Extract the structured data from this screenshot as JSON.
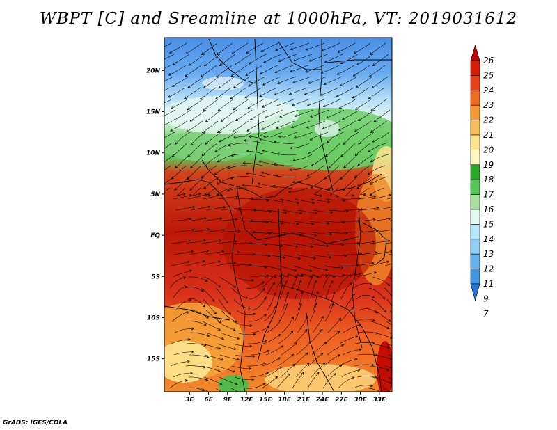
{
  "title": "WBPT [C] and Sreamline at 1000hPa, VT: 2019031612",
  "footer": "GrADS: IGES/COLA",
  "map": {
    "lat_labels": [
      "20N",
      "15N",
      "10N",
      "5N",
      "EQ",
      "5S",
      "10S",
      "15S"
    ],
    "lon_labels": [
      "3E",
      "6E",
      "9E",
      "12E",
      "15E",
      "18E",
      "21E",
      "24E",
      "27E",
      "30E",
      "33E"
    ]
  },
  "colorbar": {
    "levels": [
      "26",
      "25",
      "24",
      "23",
      "22",
      "21",
      "20",
      "19",
      "18",
      "17",
      "16",
      "15",
      "14",
      "13",
      "12",
      "11",
      "9",
      "7"
    ],
    "colors": [
      "#c00000",
      "#d81c08",
      "#e8401a",
      "#f06a20",
      "#f49a30",
      "#f8c058",
      "#fde490",
      "#fdf8c2",
      "#2aa82a",
      "#56c456",
      "#a8e0a0",
      "#e4f8f4",
      "#b6e6f8",
      "#8ecff2",
      "#64b2ea",
      "#4494e0",
      "#2a74d8"
    ]
  }
}
